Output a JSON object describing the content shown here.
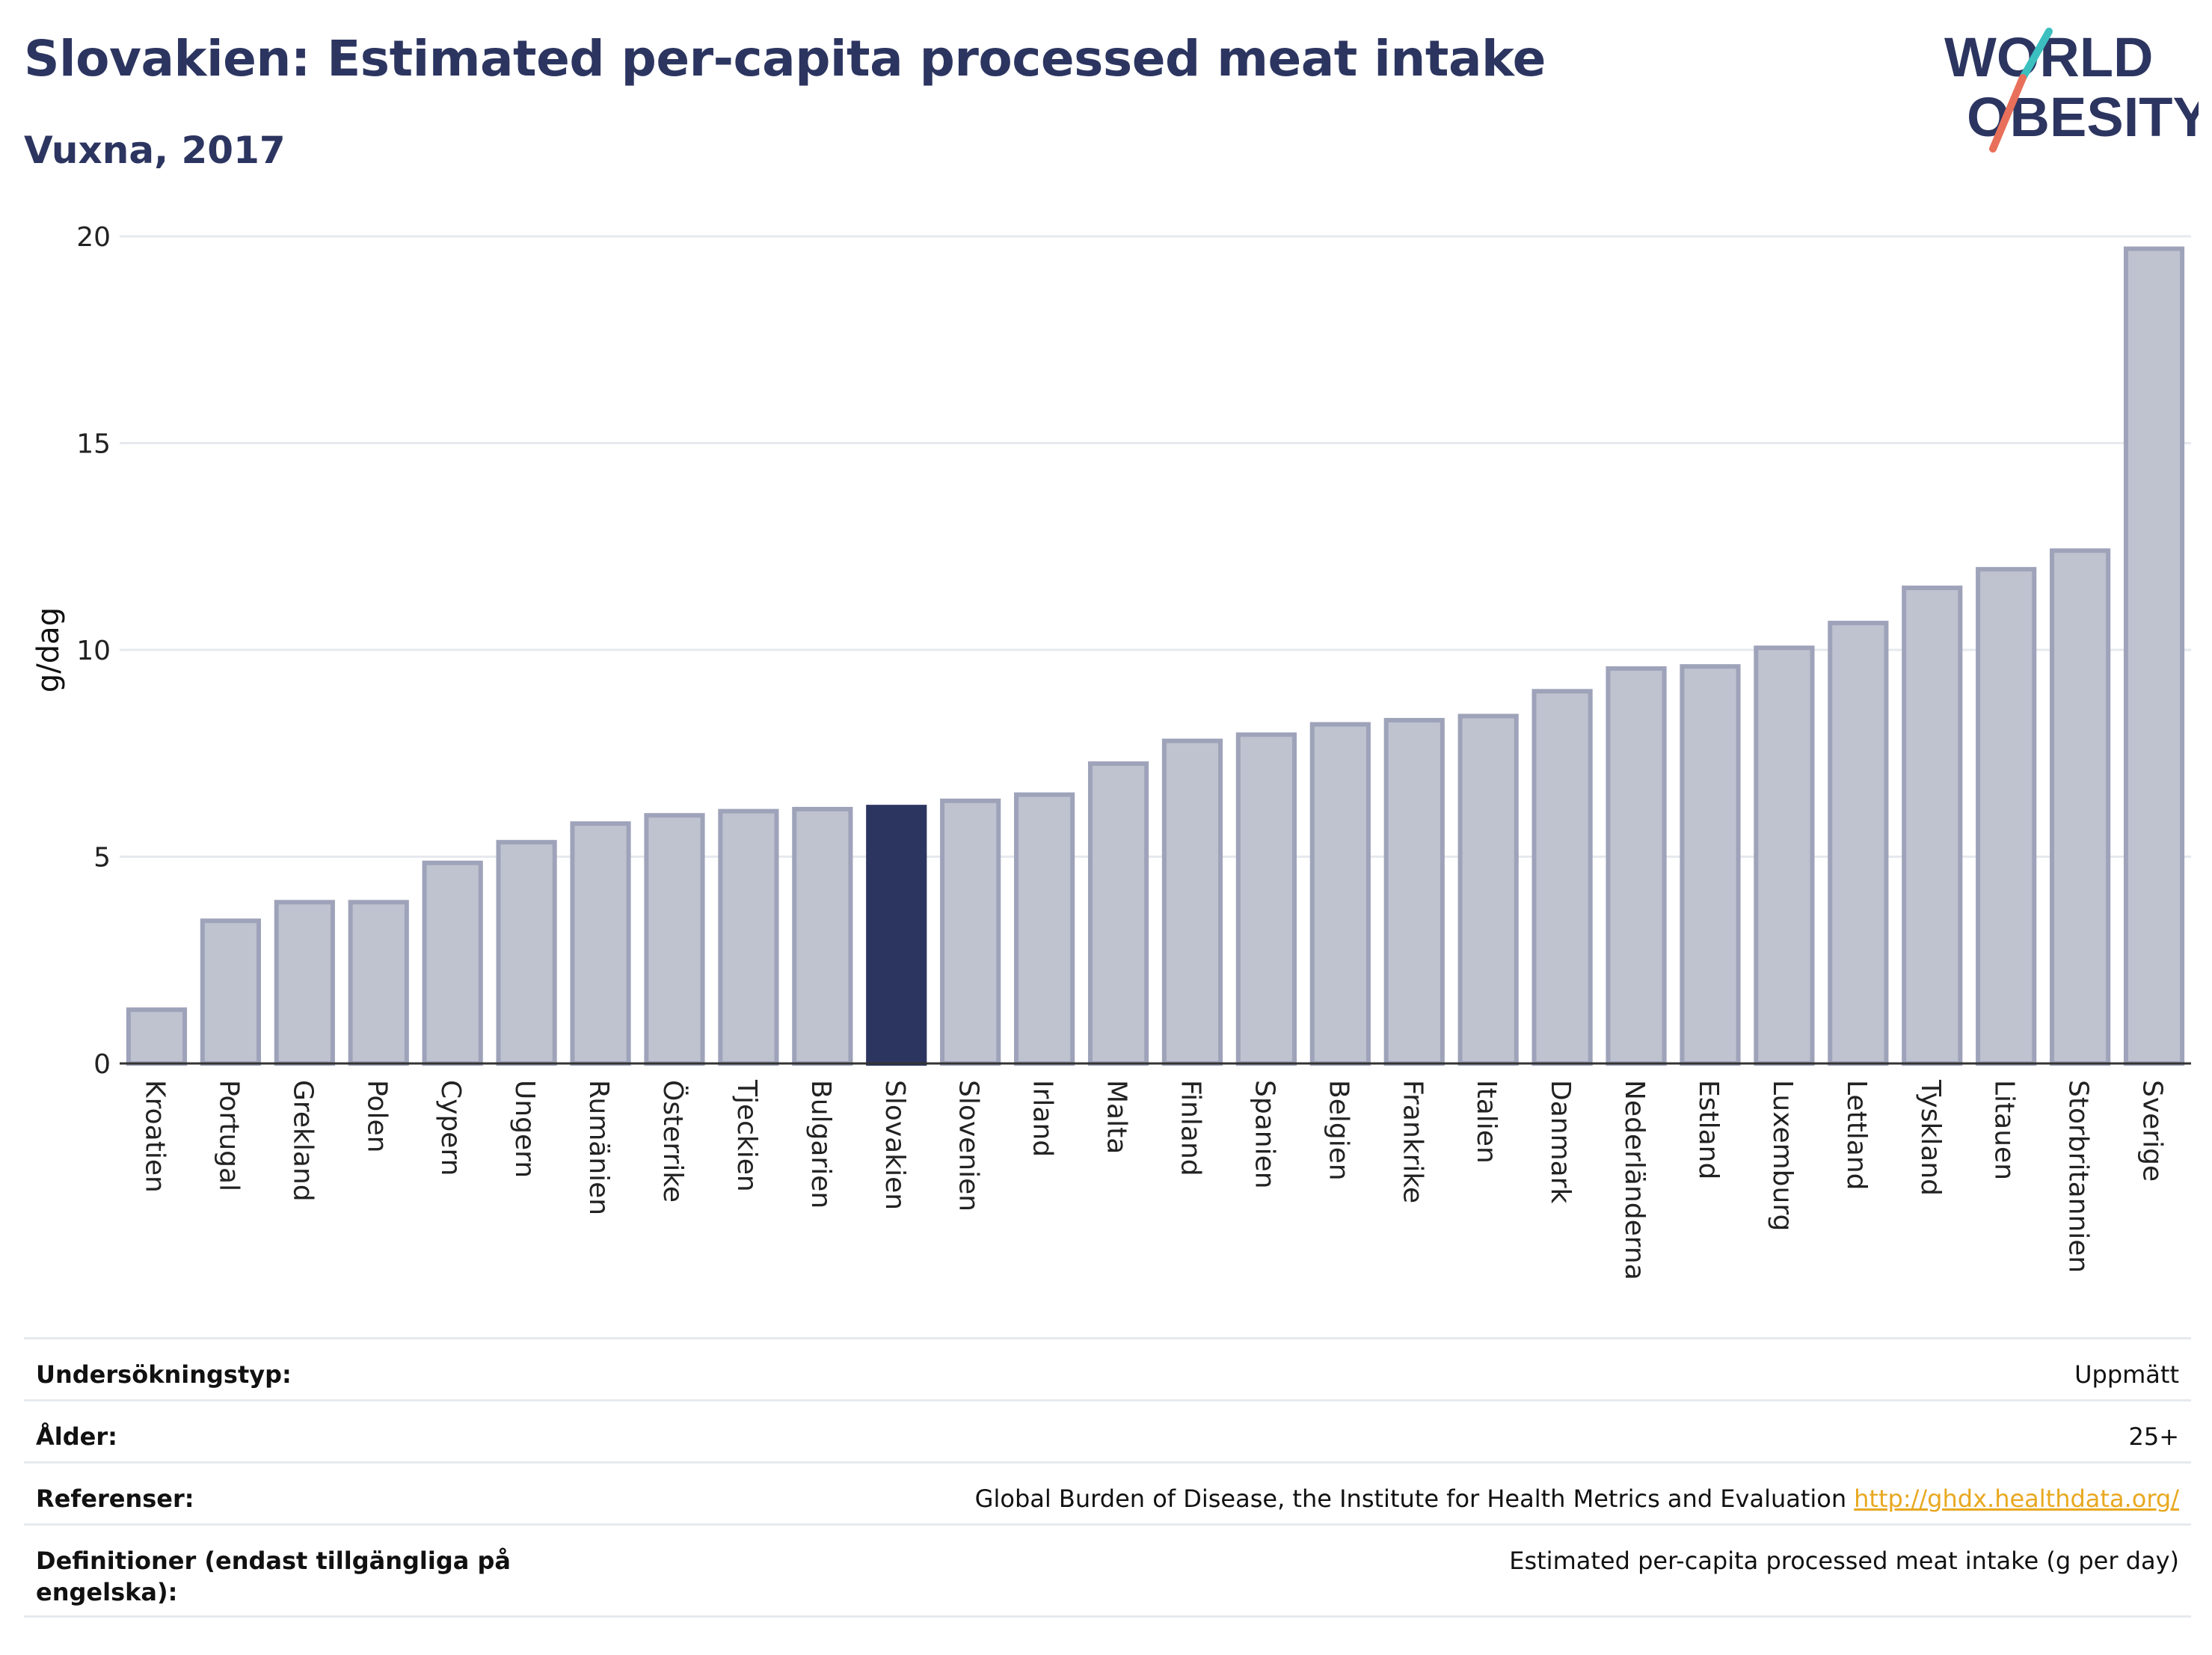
{
  "header": {
    "title": "Slovakien: Estimated per-capita processed meat intake",
    "subtitle": "Vuxna, 2017"
  },
  "logo": {
    "line1": "WORLD",
    "line2": "OBESITY",
    "colors": [
      "#2c3560",
      "#3bbfbf",
      "#e8705a"
    ]
  },
  "chart_data": {
    "type": "bar",
    "ylabel": "g/dag",
    "ylim": [
      0,
      20
    ],
    "yticks": [
      0,
      5,
      10,
      15,
      20
    ],
    "grid": true,
    "highlight": "Slovakien",
    "colors": {
      "bar": "#bfc2cf",
      "bar_border": "#9ea3ba",
      "highlight": "#2c3560",
      "grid": "#e6e9ee",
      "axis": "#333333"
    },
    "categories": [
      "Kroatien",
      "Portugal",
      "Grekland",
      "Polen",
      "Cypern",
      "Ungern",
      "Rumänien",
      "Österrike",
      "Tjeckien",
      "Bulgarien",
      "Slovakien",
      "Slovenien",
      "Irland",
      "Malta",
      "Finland",
      "Spanien",
      "Belgien",
      "Frankrike",
      "Italien",
      "Danmark",
      "Nederländerna",
      "Estland",
      "Luxemburg",
      "Lettland",
      "Tyskland",
      "Litauen",
      "Storbritannien",
      "Sverige"
    ],
    "values": [
      1.3,
      3.45,
      3.9,
      3.9,
      4.85,
      5.35,
      5.8,
      6.0,
      6.1,
      6.15,
      6.2,
      6.35,
      6.5,
      7.25,
      7.8,
      7.95,
      8.2,
      8.3,
      8.4,
      9.0,
      9.55,
      9.6,
      10.05,
      10.65,
      11.5,
      11.95,
      12.4,
      19.7
    ]
  },
  "metadata": {
    "rows": [
      {
        "label": "Undersökningstyp:",
        "value": "Uppmätt"
      },
      {
        "label": "Ålder:",
        "value": "25+"
      },
      {
        "label": "Referenser:",
        "value": "Global Burden of Disease, the Institute for Health Metrics and Evaluation",
        "link": "http://ghdx.healthdata.org/"
      },
      {
        "label": "Definitioner (endast tillgängliga på engelska):",
        "value": "Estimated per-capita processed meat intake (g per day)"
      }
    ]
  }
}
